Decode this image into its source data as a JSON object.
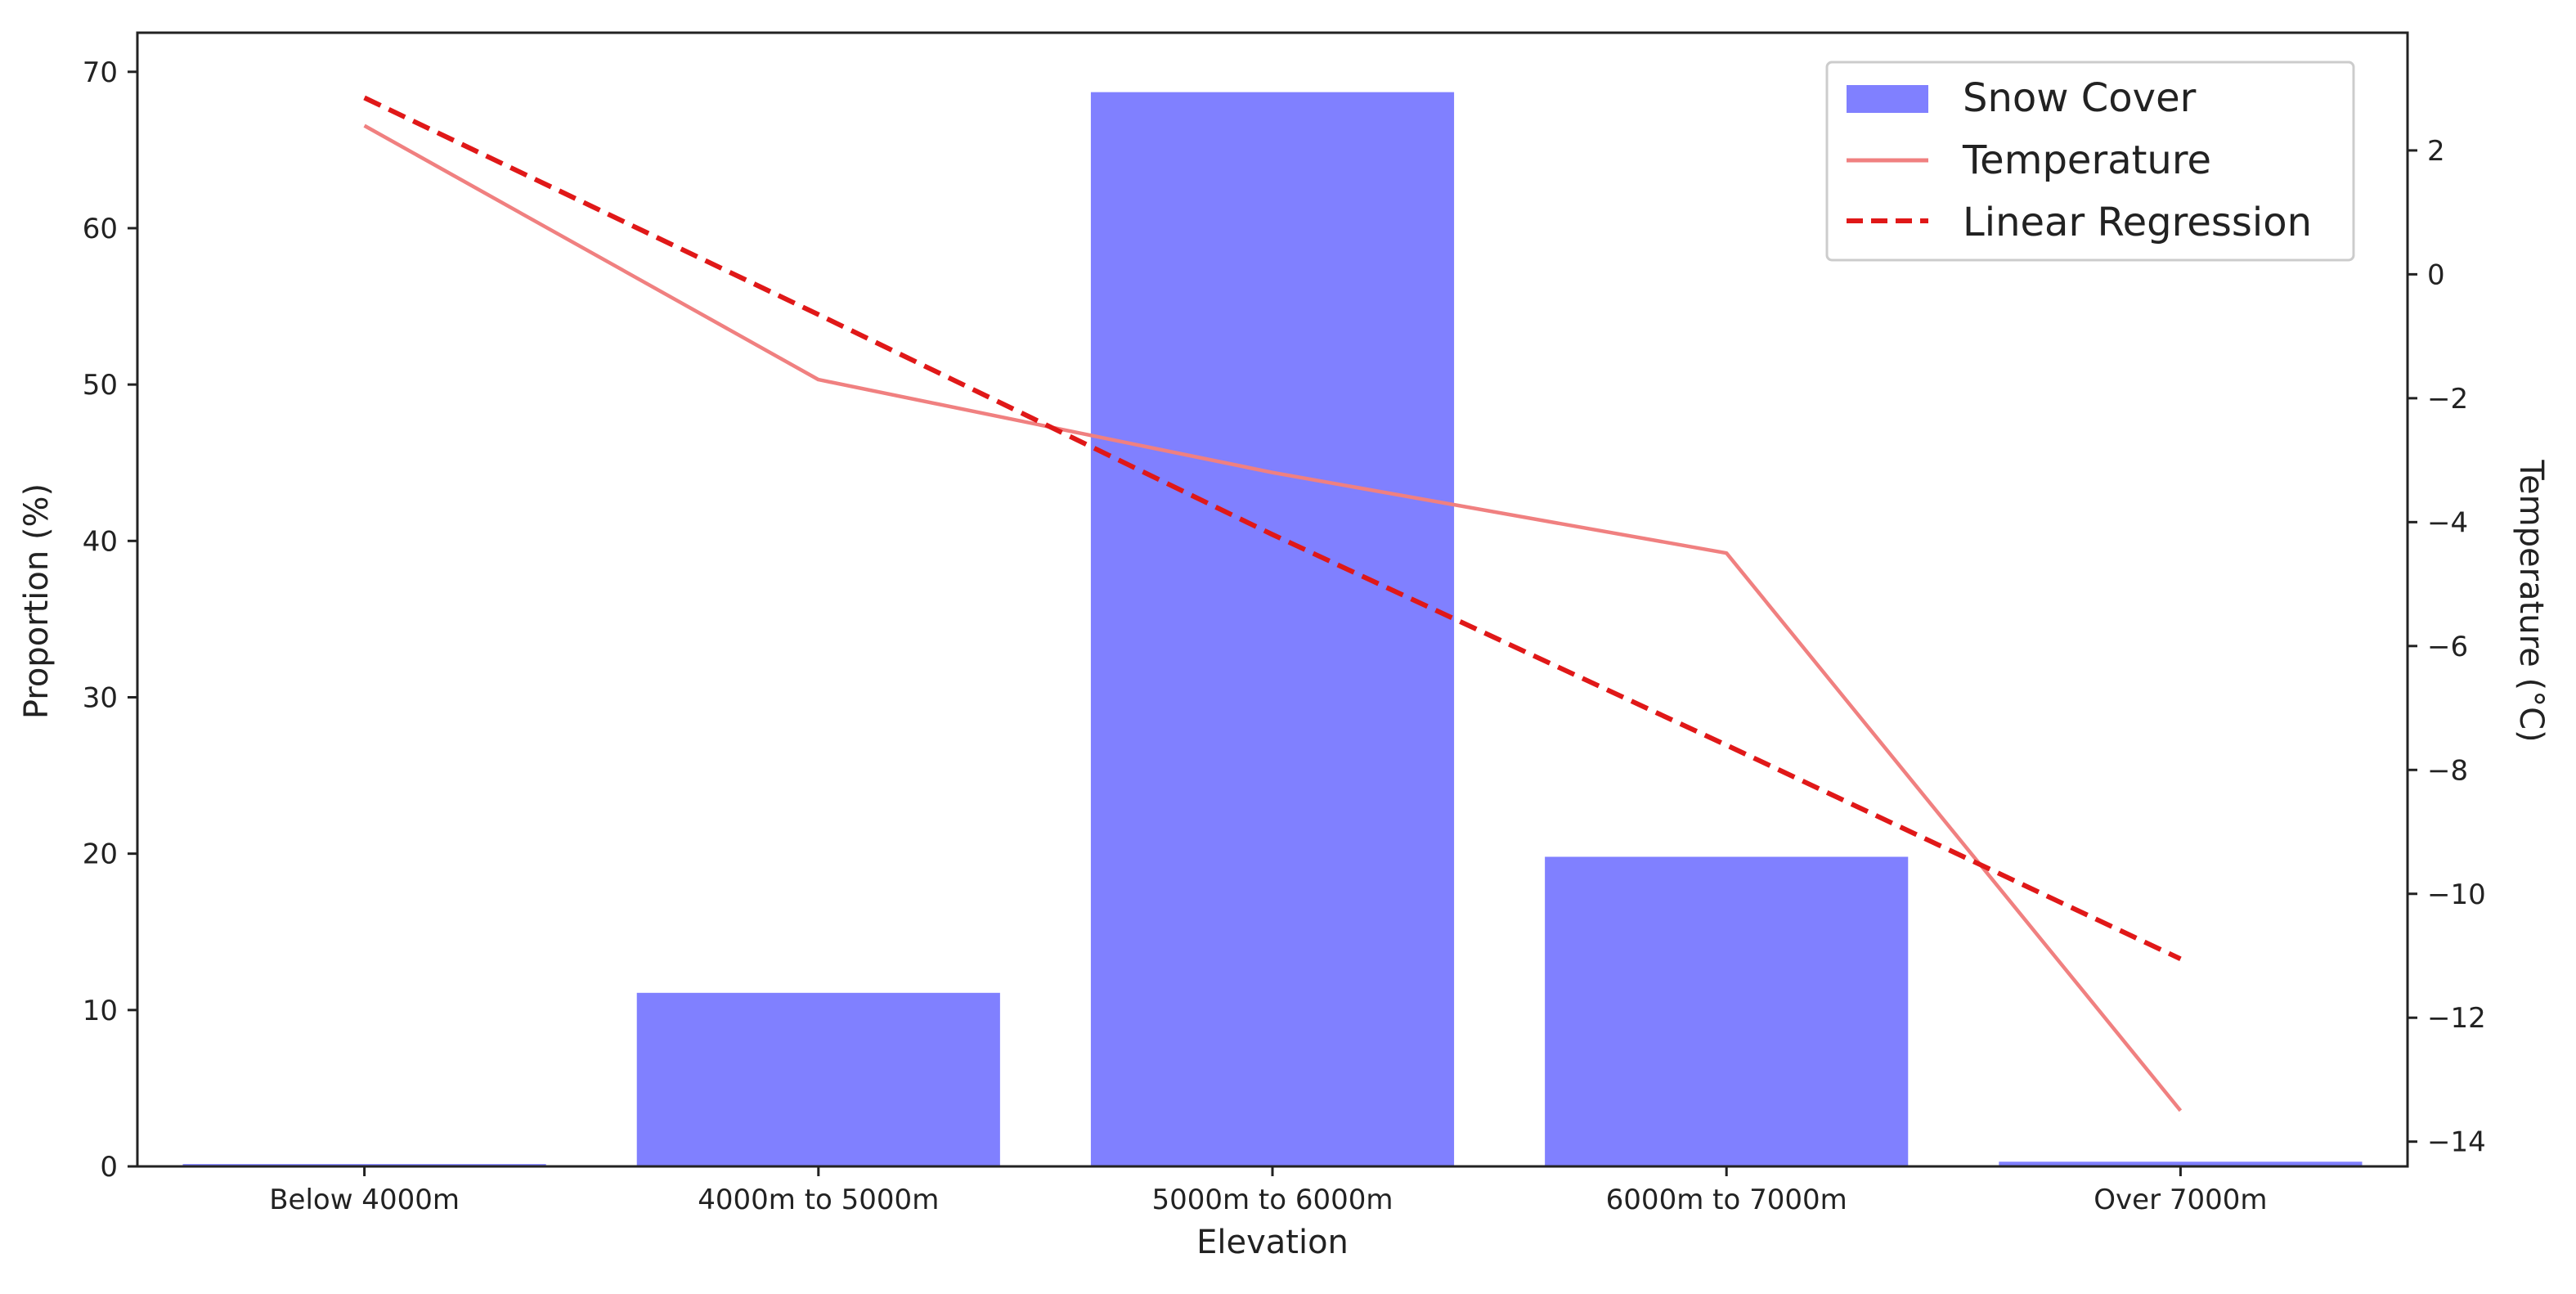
{
  "chart_data": {
    "type": "bar",
    "title": "",
    "categories": [
      "Below 4000m",
      "4000m to 5000m",
      "5000m to 6000m",
      "6000m to 7000m",
      "Over 7000m"
    ],
    "xlabel": "Elevation",
    "ylabel": "Proportion (%)",
    "y2label": "Temperature (°C)",
    "ylim": [
      0,
      72.5
    ],
    "y2lim": [
      -14.4,
      3.9
    ],
    "yticks": [
      0,
      10,
      20,
      30,
      40,
      50,
      60,
      70
    ],
    "y2ticks": [
      2,
      0,
      -2,
      -4,
      -6,
      -8,
      -10,
      -12,
      -14
    ],
    "y2tick_labels": [
      "2",
      "0",
      "−2",
      "−4",
      "−6",
      "−8",
      "−10",
      "−12",
      "−14"
    ],
    "grid": false,
    "legend_position": "top-right",
    "series": [
      {
        "name": "Snow Cover",
        "type": "bar",
        "axis": "left",
        "color": "#8080ff",
        "values": [
          0.15,
          11.1,
          68.7,
          19.8,
          0.3
        ]
      },
      {
        "name": "Temperature",
        "type": "line",
        "axis": "right",
        "color": "#f08080",
        "style": "solid",
        "values": [
          2.4,
          -1.7,
          -3.2,
          -4.5,
          -13.5
        ]
      },
      {
        "name": "Linear Regression",
        "type": "line",
        "axis": "right",
        "color": "#e01818",
        "style": "dashed",
        "values": [
          2.85,
          -0.65,
          -4.2,
          -7.6,
          -11.05
        ]
      }
    ]
  }
}
